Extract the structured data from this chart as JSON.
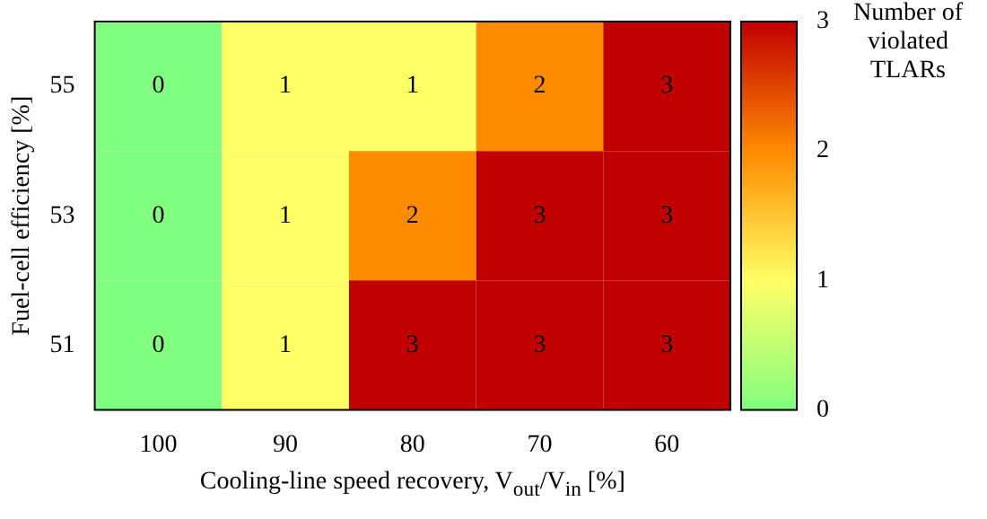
{
  "chart_data": {
    "type": "heatmap",
    "xlabel": "Cooling-line speed recovery, V$_{out}$/V$_{in}$ [%]",
    "ylabel": "Fuel-cell efficiency [%]",
    "clabel": "Number of violated TLARs",
    "categories": [
      "100",
      "90",
      "80",
      "70",
      "60"
    ],
    "y_categories": [
      "55",
      "53",
      "51"
    ],
    "cells": [
      [
        0,
        1,
        1,
        2,
        3
      ],
      [
        0,
        1,
        2,
        3,
        3
      ],
      [
        0,
        1,
        3,
        3,
        3
      ]
    ],
    "clim": [
      0,
      3
    ],
    "cticks": [
      0,
      1,
      2,
      3
    ],
    "data_labels": true
  }
}
